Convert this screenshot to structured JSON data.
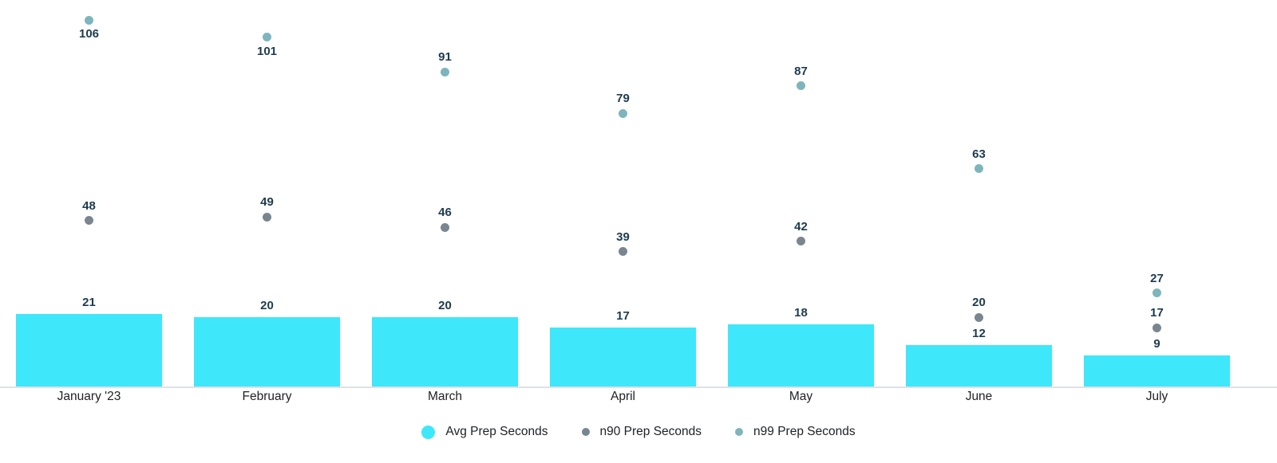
{
  "colors": {
    "bar": "#3ee7fa",
    "n90_dot": "#7a868f",
    "n99_dot": "#7eb5bc",
    "value_label": "#1d3b50",
    "axis_label": "#202225",
    "axis_line": "#e0e1e7",
    "background": "#ffffff"
  },
  "legend": {
    "items": [
      {
        "label": "Avg Prep Seconds",
        "color": "#3ee7fa",
        "marker": "circle-large"
      },
      {
        "label": "n90 Prep Seconds",
        "color": "#7a868f",
        "marker": "circle-small"
      },
      {
        "label": "n99 Prep Seconds",
        "color": "#7eb5bc",
        "marker": "circle-small"
      }
    ]
  },
  "chart_data": {
    "type": "bar",
    "categories": [
      "January '23",
      "February",
      "March",
      "April",
      "May",
      "June",
      "July"
    ],
    "series": [
      {
        "name": "Avg Prep Seconds",
        "type": "bar",
        "color": "#3ee7fa",
        "values": [
          21,
          20,
          20,
          17,
          18,
          12,
          9
        ]
      },
      {
        "name": "n90 Prep Seconds",
        "type": "scatter",
        "color": "#7a868f",
        "values": [
          48,
          49,
          46,
          39,
          42,
          20,
          17
        ]
      },
      {
        "name": "n99 Prep Seconds",
        "type": "scatter",
        "color": "#7eb5bc",
        "values": [
          106,
          101,
          91,
          79,
          87,
          63,
          27
        ]
      }
    ],
    "ylim": [
      0,
      112
    ],
    "xlabel": "",
    "ylabel": "",
    "grid": false,
    "data_labels": true,
    "legend_position": "bottom"
  }
}
